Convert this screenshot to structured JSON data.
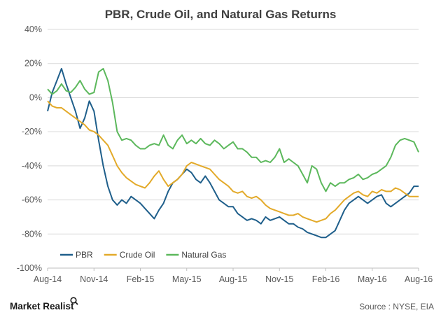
{
  "chart_data": {
    "type": "line",
    "title": "PBR, Crude Oil, and Natural Gas Returns",
    "xlabel": "",
    "ylabel": "",
    "ylim": [
      -100,
      40
    ],
    "y_ticks": [
      "40%",
      "20%",
      "0%",
      "-20%",
      "-40%",
      "-60%",
      "-80%",
      "-100%"
    ],
    "x_ticks": [
      "Aug-14",
      "Nov-14",
      "Feb-15",
      "May-15",
      "Aug-15",
      "Nov-15",
      "Feb-16",
      "May-16",
      "Aug-16"
    ],
    "x_tick_months": [
      0,
      3,
      6,
      9,
      12,
      15,
      18,
      21,
      24
    ],
    "grid": true,
    "legend_position": "bottom-left",
    "series": [
      {
        "name": "PBR",
        "color": "#1f5f8b",
        "x": [
          0,
          0.3,
          0.6,
          0.9,
          1.2,
          1.5,
          1.8,
          2.1,
          2.4,
          2.7,
          3.0,
          3.3,
          3.6,
          3.9,
          4.2,
          4.5,
          4.8,
          5.1,
          5.4,
          5.7,
          6.0,
          6.3,
          6.6,
          6.9,
          7.2,
          7.5,
          7.8,
          8.1,
          8.4,
          8.7,
          9.0,
          9.3,
          9.6,
          9.9,
          10.2,
          10.5,
          10.8,
          11.1,
          11.4,
          11.7,
          12.0,
          12.3,
          12.6,
          12.9,
          13.2,
          13.5,
          13.8,
          14.1,
          14.4,
          14.7,
          15.0,
          15.3,
          15.6,
          15.9,
          16.2,
          16.5,
          16.8,
          17.1,
          17.4,
          17.7,
          18.0,
          18.3,
          18.6,
          18.9,
          19.2,
          19.5,
          19.8,
          20.1,
          20.4,
          20.7,
          21.0,
          21.3,
          21.6,
          21.9,
          22.2,
          22.5,
          22.8,
          23.1,
          23.4,
          23.7,
          24.0
        ],
        "values": [
          -8,
          3,
          10,
          17,
          8,
          0,
          -8,
          -18,
          -12,
          -2,
          -8,
          -25,
          -40,
          -52,
          -60,
          -63,
          -60,
          -62,
          -58,
          -60,
          -62,
          -65,
          -68,
          -71,
          -66,
          -62,
          -55,
          -50,
          -48,
          -45,
          -42,
          -44,
          -48,
          -50,
          -46,
          -50,
          -55,
          -60,
          -62,
          -64,
          -64,
          -68,
          -70,
          -72,
          -71,
          -72,
          -74,
          -70,
          -72,
          -71,
          -70,
          -72,
          -74,
          -74,
          -76,
          -77,
          -79,
          -80,
          -81,
          -82,
          -82,
          -80,
          -78,
          -72,
          -66,
          -62,
          -60,
          -58,
          -60,
          -62,
          -60,
          -58,
          -57,
          -62,
          -64,
          -62,
          -60,
          -58,
          -56,
          -52,
          -52
        ]
      },
      {
        "name": "Crude Oil",
        "color": "#e3aa2a",
        "x": [
          0,
          0.3,
          0.6,
          0.9,
          1.2,
          1.5,
          1.8,
          2.1,
          2.4,
          2.7,
          3.0,
          3.3,
          3.6,
          3.9,
          4.2,
          4.5,
          4.8,
          5.1,
          5.4,
          5.7,
          6.0,
          6.3,
          6.6,
          6.9,
          7.2,
          7.5,
          7.8,
          8.1,
          8.4,
          8.7,
          9.0,
          9.3,
          9.6,
          9.9,
          10.2,
          10.5,
          10.8,
          11.1,
          11.4,
          11.7,
          12.0,
          12.3,
          12.6,
          12.9,
          13.2,
          13.5,
          13.8,
          14.1,
          14.4,
          14.7,
          15.0,
          15.3,
          15.6,
          15.9,
          16.2,
          16.5,
          16.8,
          17.1,
          17.4,
          17.7,
          18.0,
          18.3,
          18.6,
          18.9,
          19.2,
          19.5,
          19.8,
          20.1,
          20.4,
          20.7,
          21.0,
          21.3,
          21.6,
          21.9,
          22.2,
          22.5,
          22.8,
          23.1,
          23.4,
          23.7,
          24.0
        ],
        "values": [
          -2,
          -5,
          -6,
          -6,
          -8,
          -10,
          -12,
          -14,
          -16,
          -19,
          -20,
          -22,
          -25,
          -28,
          -34,
          -40,
          -44,
          -47,
          -49,
          -51,
          -52,
          -53,
          -50,
          -46,
          -43,
          -48,
          -52,
          -50,
          -48,
          -45,
          -40,
          -38,
          -39,
          -40,
          -41,
          -42,
          -45,
          -48,
          -50,
          -52,
          -55,
          -56,
          -55,
          -58,
          -59,
          -58,
          -60,
          -63,
          -65,
          -66,
          -67,
          -68,
          -69,
          -69,
          -68,
          -70,
          -71,
          -72,
          -73,
          -72,
          -71,
          -68,
          -66,
          -63,
          -60,
          -58,
          -56,
          -55,
          -57,
          -58,
          -55,
          -56,
          -54,
          -55,
          -55,
          -53,
          -54,
          -56,
          -58,
          -58,
          -58
        ]
      },
      {
        "name": "Natural Gas",
        "color": "#5cb85c",
        "x": [
          0,
          0.3,
          0.6,
          0.9,
          1.2,
          1.5,
          1.8,
          2.1,
          2.4,
          2.7,
          3.0,
          3.3,
          3.6,
          3.9,
          4.2,
          4.5,
          4.8,
          5.1,
          5.4,
          5.7,
          6.0,
          6.3,
          6.6,
          6.9,
          7.2,
          7.5,
          7.8,
          8.1,
          8.4,
          8.7,
          9.0,
          9.3,
          9.6,
          9.9,
          10.2,
          10.5,
          10.8,
          11.1,
          11.4,
          11.7,
          12.0,
          12.3,
          12.6,
          12.9,
          13.2,
          13.5,
          13.8,
          14.1,
          14.4,
          14.7,
          15.0,
          15.3,
          15.6,
          15.9,
          16.2,
          16.5,
          16.8,
          17.1,
          17.4,
          17.7,
          18.0,
          18.3,
          18.6,
          18.9,
          19.2,
          19.5,
          19.8,
          20.1,
          20.4,
          20.7,
          21.0,
          21.3,
          21.6,
          21.9,
          22.2,
          22.5,
          22.8,
          23.1,
          23.4,
          23.7,
          24.0
        ],
        "values": [
          5,
          2,
          4,
          8,
          4,
          3,
          6,
          10,
          5,
          2,
          3,
          15,
          17,
          10,
          -3,
          -20,
          -25,
          -24,
          -25,
          -28,
          -30,
          -30,
          -28,
          -27,
          -28,
          -22,
          -28,
          -30,
          -25,
          -22,
          -27,
          -25,
          -27,
          -24,
          -27,
          -28,
          -25,
          -27,
          -30,
          -28,
          -26,
          -30,
          -30,
          -32,
          -35,
          -35,
          -38,
          -37,
          -38,
          -35,
          -30,
          -38,
          -36,
          -38,
          -40,
          -45,
          -50,
          -40,
          -42,
          -50,
          -55,
          -50,
          -52,
          -50,
          -50,
          -48,
          -47,
          -45,
          -48,
          -47,
          -45,
          -44,
          -42,
          -40,
          -35,
          -28,
          -25,
          -24,
          -25,
          -26,
          -32
        ]
      }
    ]
  },
  "source_text": "Source : NYSE, EIA",
  "brand_text": "Market Realist",
  "brand_icon": "magnifier-icon"
}
